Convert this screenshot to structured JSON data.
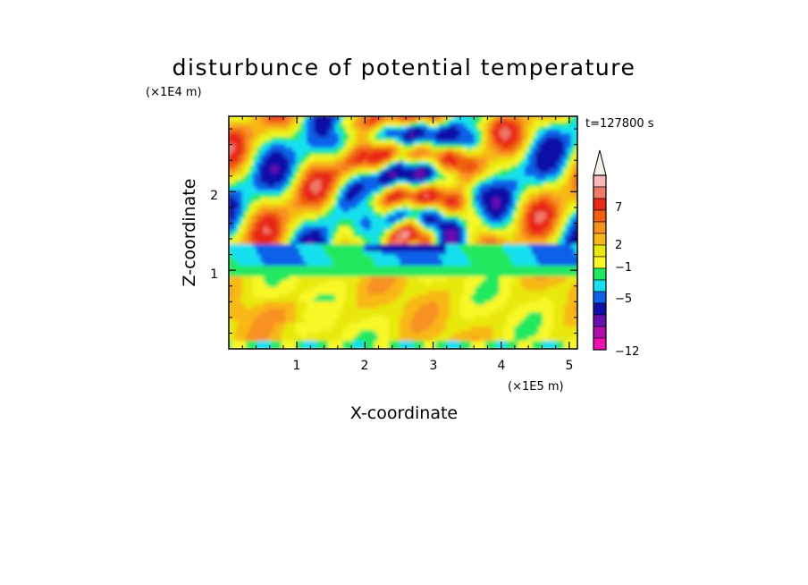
{
  "chart_data": {
    "type": "heatmap",
    "title": "disturbunce of potential temperature",
    "time_label": "t=127800 s",
    "xlabel": "X-coordinate",
    "ylabel": "Z-coordinate",
    "x_unit": "(×1E5 m)",
    "y_unit": "(×1E4 m)",
    "xlim": [
      0,
      5.12
    ],
    "ylim": [
      0,
      2.96
    ],
    "x_ticks": [
      "1",
      "2",
      "3",
      "4",
      "5"
    ],
    "y_ticks": [
      "1",
      "2"
    ],
    "colorbar": {
      "tick_labels": [
        "7",
        "2",
        "−1",
        "−5",
        "−12"
      ],
      "levels_top_to_bottom": [
        {
          "level": "≥ max (arrow)",
          "color": "#f6f0e8"
        },
        {
          "level": 8,
          "color": "#f8b8b8"
        },
        {
          "level": 7,
          "color": "#f07868"
        },
        {
          "level": 5,
          "color": "#e82818"
        },
        {
          "level": 4,
          "color": "#f06010"
        },
        {
          "level": 3,
          "color": "#f89020"
        },
        {
          "level": 2,
          "color": "#f8b818"
        },
        {
          "level": 1,
          "color": "#e8e810"
        },
        {
          "level": 0,
          "color": "#f8f828"
        },
        {
          "level": -1,
          "color": "#20e860"
        },
        {
          "level": -2,
          "color": "#18e0f0"
        },
        {
          "level": -3,
          "color": "#1060e8"
        },
        {
          "level": -5,
          "color": "#1010a8"
        },
        {
          "level": -7,
          "color": "#6810b0"
        },
        {
          "level": -9,
          "color": "#b010a8"
        },
        {
          "level": -12,
          "color": "#f010b0"
        }
      ]
    },
    "field_description_by_height": [
      {
        "z_range": [
          0,
          0.9
        ],
        "dominant_values": [
          0,
          2,
          3
        ]
      },
      {
        "z_range": [
          0.9,
          1.3
        ],
        "dominant_values": [
          -1,
          -2
        ]
      },
      {
        "z_range": [
          1.3,
          2.96
        ],
        "dominant_values": [
          -5,
          -3,
          -2,
          2,
          3,
          4,
          5
        ]
      }
    ]
  }
}
